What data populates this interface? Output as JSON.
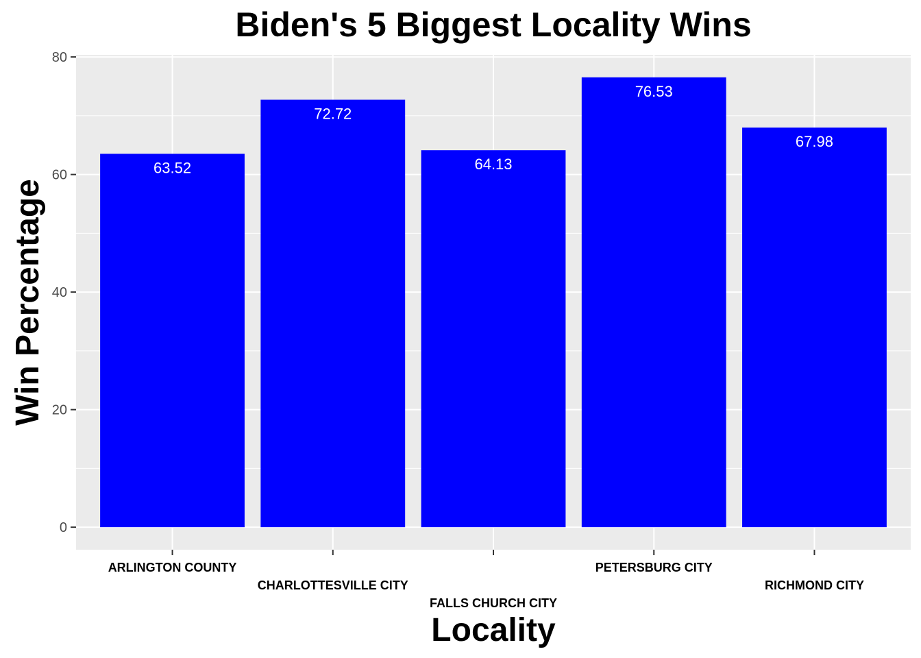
{
  "chart_data": {
    "type": "bar",
    "title": "Biden's 5 Biggest Locality Wins",
    "xlabel": "Locality",
    "ylabel": "Win Percentage",
    "categories": [
      "ARLINGTON COUNTY",
      "CHARLOTTESVILLE CITY",
      "FALLS CHURCH CITY",
      "PETERSBURG CITY",
      "RICHMOND CITY"
    ],
    "values": [
      63.52,
      72.72,
      64.13,
      76.53,
      67.98
    ],
    "value_labels": [
      "63.52",
      "72.72",
      "64.13",
      "76.53",
      "67.98"
    ],
    "yticks": [
      0,
      20,
      40,
      60,
      80
    ],
    "ytick_labels": [
      "0",
      "20",
      "40",
      "60",
      "80"
    ],
    "ylim": [
      -3.83,
      80.36
    ],
    "grid": true,
    "colors": {
      "bar": "#0000ff",
      "panel": "#ebebeb",
      "grid": "#ffffff",
      "value_label": "#ffffff"
    }
  }
}
